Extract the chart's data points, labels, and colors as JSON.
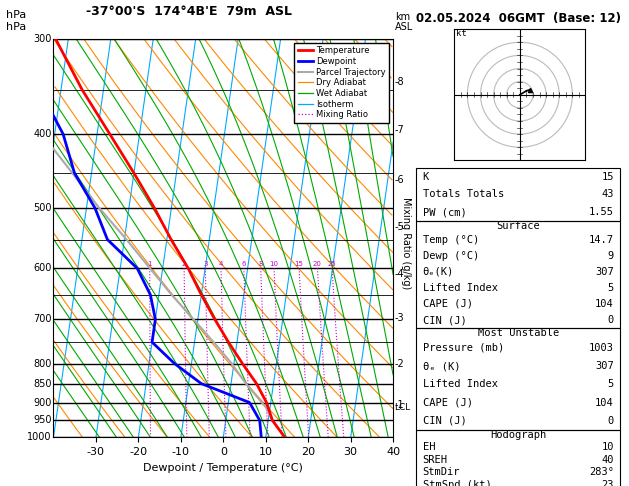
{
  "title_left": "-37°00'S  174°4B'E  79m  ASL",
  "title_right": "02.05.2024  06GMT  (Base: 12)",
  "xlabel": "Dewpoint / Temperature (°C)",
  "pmin": 300,
  "pmax": 1000,
  "tmin": -40,
  "tmax": 40,
  "skew_factor": 13.5,
  "pressure_levels_minor": [
    350,
    450,
    550,
    650,
    750
  ],
  "pressure_levels_major": [
    300,
    400,
    500,
    600,
    700,
    800,
    850,
    900,
    950,
    1000
  ],
  "temp_ticks": [
    -30,
    -20,
    -10,
    0,
    10,
    20,
    30,
    40
  ],
  "km_values": [
    8,
    7,
    6,
    5,
    4,
    3,
    2,
    1
  ],
  "km_pressures": [
    342,
    395,
    460,
    530,
    610,
    698,
    800,
    907
  ],
  "lcl_pressure": 913,
  "legend_items": [
    {
      "label": "Temperature",
      "color": "#ff0000",
      "lw": 2.0,
      "ls": "-"
    },
    {
      "label": "Dewpoint",
      "color": "#0000ff",
      "lw": 2.0,
      "ls": "-"
    },
    {
      "label": "Parcel Trajectory",
      "color": "#aaaaaa",
      "lw": 1.5,
      "ls": "-"
    },
    {
      "label": "Dry Adiabat",
      "color": "#ff8800",
      "lw": 0.9,
      "ls": "-"
    },
    {
      "label": "Wet Adiabat",
      "color": "#00aa00",
      "lw": 0.9,
      "ls": "-"
    },
    {
      "label": "Isotherm",
      "color": "#00aaff",
      "lw": 0.9,
      "ls": "-"
    },
    {
      "label": "Mixing Ratio",
      "color": "#cc00cc",
      "lw": 0.9,
      "ls": ":"
    }
  ],
  "temp_profile": {
    "pressure": [
      1003,
      950,
      900,
      850,
      800,
      750,
      700,
      650,
      600,
      550,
      500,
      450,
      400,
      350,
      300
    ],
    "temp": [
      14.7,
      11.0,
      9.0,
      6.0,
      2.0,
      -2.0,
      -6.0,
      -10.0,
      -14.0,
      -19.0,
      -24.0,
      -30.0,
      -37.0,
      -45.0,
      -53.0
    ]
  },
  "dewp_profile": {
    "pressure": [
      1003,
      950,
      900,
      850,
      800,
      750,
      700,
      650,
      600,
      550,
      500,
      450,
      400,
      350,
      300
    ],
    "temp": [
      9.0,
      8.0,
      5.0,
      -7.0,
      -14.0,
      -20.0,
      -20.0,
      -22.0,
      -26.0,
      -34.0,
      -38.0,
      -44.0,
      -48.0,
      -55.0,
      -62.0
    ]
  },
  "parcel_profile": {
    "pressure": [
      1003,
      950,
      913,
      850,
      800,
      750,
      700,
      650,
      600,
      550,
      500,
      450,
      400,
      350,
      300
    ],
    "temp": [
      14.7,
      11.0,
      9.0,
      3.5,
      -0.5,
      -5.5,
      -11.0,
      -17.0,
      -23.0,
      -29.5,
      -37.0,
      -44.5,
      -53.0,
      -62.0,
      -71.0
    ]
  },
  "stats": {
    "K": 15,
    "Totals_Totals": 43,
    "PW_cm": 1.55,
    "surface": {
      "Temp_C": 14.7,
      "Dewp_C": 9,
      "theta_e_K": 307,
      "Lifted_Index": 5,
      "CAPE_J": 104,
      "CIN_J": 0
    },
    "most_unstable": {
      "Pressure_mb": 1003,
      "theta_e_K": 307,
      "Lifted_Index": 5,
      "CAPE_J": 104,
      "CIN_J": 0
    },
    "hodograph": {
      "EH": 10,
      "SREH": 40,
      "StmDir": "283°",
      "StmSpd_kt": 23
    }
  },
  "mixing_ratio_vals": [
    1,
    2,
    3,
    4,
    6,
    8,
    10,
    15,
    20,
    25
  ],
  "dry_adiabat_thetas": [
    220,
    230,
    240,
    250,
    260,
    270,
    280,
    290,
    300,
    310,
    320,
    330,
    340,
    350,
    360,
    370,
    380,
    390,
    400,
    410,
    420
  ],
  "wet_adiabat_tw": [
    244,
    248,
    252,
    256,
    260,
    264,
    268,
    272,
    276,
    280,
    284,
    288,
    292,
    296,
    300,
    304,
    308,
    312,
    316,
    320,
    324,
    328
  ]
}
